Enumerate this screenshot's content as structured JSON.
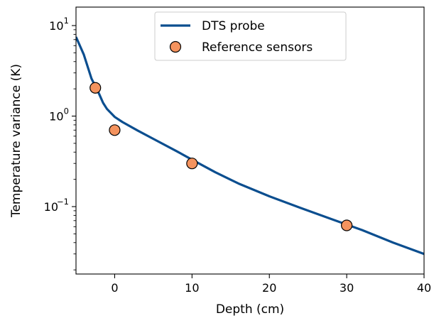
{
  "chart_data": {
    "type": "line",
    "xlabel": "Depth (cm)",
    "ylabel": "Temperature variance (K)",
    "xlim": [
      -5,
      40
    ],
    "ylim": [
      0.018,
      16
    ],
    "y_scale": "log",
    "grid": false,
    "legend_position": "top-center",
    "x_ticks": [
      {
        "value": 0,
        "label": "0"
      },
      {
        "value": 10,
        "label": "10"
      },
      {
        "value": 20,
        "label": "20"
      },
      {
        "value": 30,
        "label": "30"
      },
      {
        "value": 40,
        "label": "40"
      }
    ],
    "y_ticks": [
      {
        "value": 0.1,
        "base": "10",
        "exp": "−1"
      },
      {
        "value": 1,
        "base": "10",
        "exp": "0"
      },
      {
        "value": 10,
        "base": "10",
        "exp": "1"
      }
    ],
    "series": [
      {
        "name": "DTS probe",
        "kind": "line",
        "color": "#0b4e8f",
        "x": [
          -5,
          -4,
          -3,
          -2,
          -1.5,
          -1,
          0,
          1,
          3,
          5,
          8,
          10,
          13,
          16,
          20,
          24,
          28,
          32,
          36,
          40
        ],
        "y": [
          7.5,
          4.8,
          2.6,
          1.75,
          1.4,
          1.2,
          0.98,
          0.86,
          0.69,
          0.56,
          0.41,
          0.33,
          0.24,
          0.18,
          0.13,
          0.097,
          0.073,
          0.055,
          0.04,
          0.03
        ]
      },
      {
        "name": "Reference sensors",
        "kind": "scatter",
        "color": "#f4935e",
        "edge_color": "#000000",
        "x": [
          -2.5,
          0,
          10,
          30
        ],
        "y": [
          2.05,
          0.7,
          0.3,
          0.062
        ]
      }
    ]
  }
}
